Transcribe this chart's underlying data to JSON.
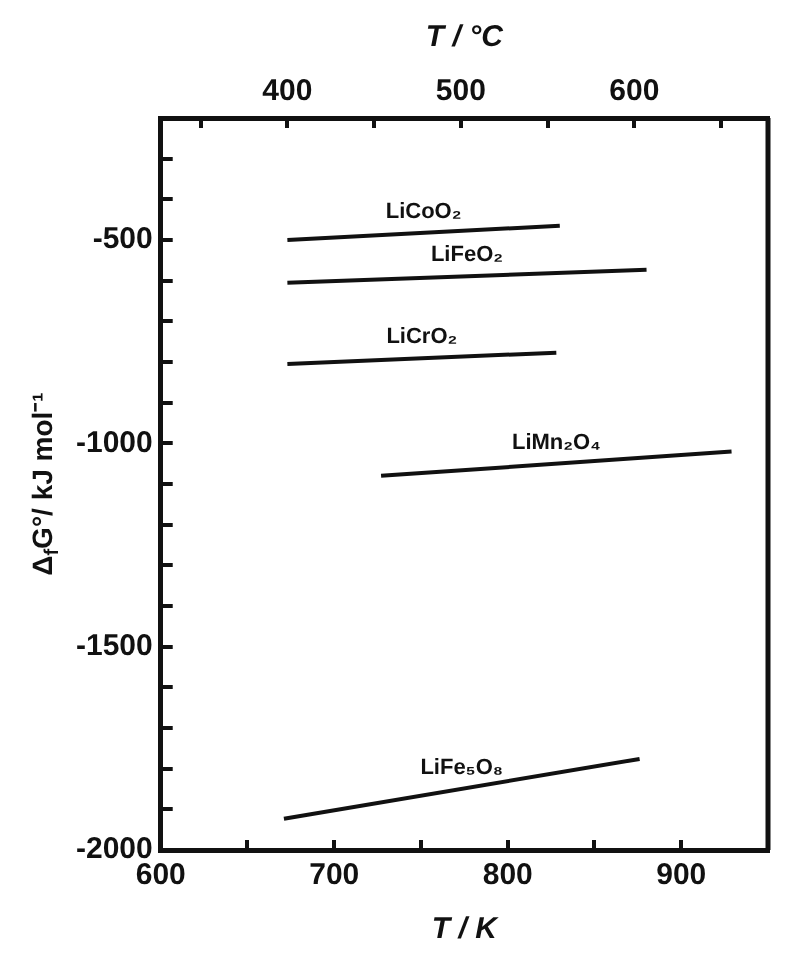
{
  "chart_data": {
    "type": "line",
    "xlabel": "T / K",
    "x2label": "T / °C",
    "ylabel": "Δ$_{f}$G°/ kJ mol⁻¹",
    "xlim": [
      600,
      950
    ],
    "xticks": [
      600,
      {
        "value": 650,
        "label": null
      },
      700,
      {
        "value": 750,
        "label": null
      },
      800,
      {
        "value": 850,
        "label": null
      },
      900,
      {
        "value": 950,
        "label": null
      }
    ],
    "x2lim": [
      327,
      677
    ],
    "x2ticks": [
      {
        "value": 350,
        "label": null
      },
      400,
      {
        "value": 450,
        "label": null
      },
      500,
      {
        "value": 550,
        "label": null
      },
      600,
      {
        "value": 650,
        "label": null
      }
    ],
    "ylim": [
      -2000,
      -200
    ],
    "yticks": [
      -2000,
      {
        "value": -1900,
        "label": null
      },
      {
        "value": -1800,
        "label": null
      },
      {
        "value": -1700,
        "label": null
      },
      {
        "value": -1600,
        "label": null
      },
      -1500,
      {
        "value": -1400,
        "label": null
      },
      {
        "value": -1300,
        "label": null
      },
      {
        "value": -1200,
        "label": null
      },
      {
        "value": -1100,
        "label": null
      },
      -1000,
      {
        "value": -900,
        "label": null
      },
      {
        "value": -800,
        "label": null
      },
      {
        "value": -700,
        "label": null
      },
      {
        "value": -600,
        "label": null
      },
      -500,
      {
        "value": -400,
        "label": null
      },
      {
        "value": -300,
        "label": null
      },
      {
        "value": -200,
        "label": null
      }
    ],
    "grid": false,
    "legend": false,
    "marker": "none",
    "line_style": "solid",
    "series": [
      {
        "name": "LiCoO₂",
        "color": "#111111",
        "x": [
          673,
          830
        ],
        "values": [
          -500,
          -465
        ]
      },
      {
        "name": "LiFeO₂",
        "color": "#111111",
        "x": [
          673,
          880
        ],
        "values": [
          -605,
          -573
        ]
      },
      {
        "name": "LiCrO₂",
        "color": "#111111",
        "x": [
          673,
          828
        ],
        "values": [
          -805,
          -777
        ]
      },
      {
        "name": "LiMn₂O₄",
        "color": "#111111",
        "x": [
          727,
          929
        ],
        "values": [
          -1080,
          -1020
        ]
      },
      {
        "name": "LiFe₅O₈",
        "color": "#111111",
        "x": [
          671,
          876
        ],
        "values": [
          -1923,
          -1776
        ]
      }
    ]
  }
}
